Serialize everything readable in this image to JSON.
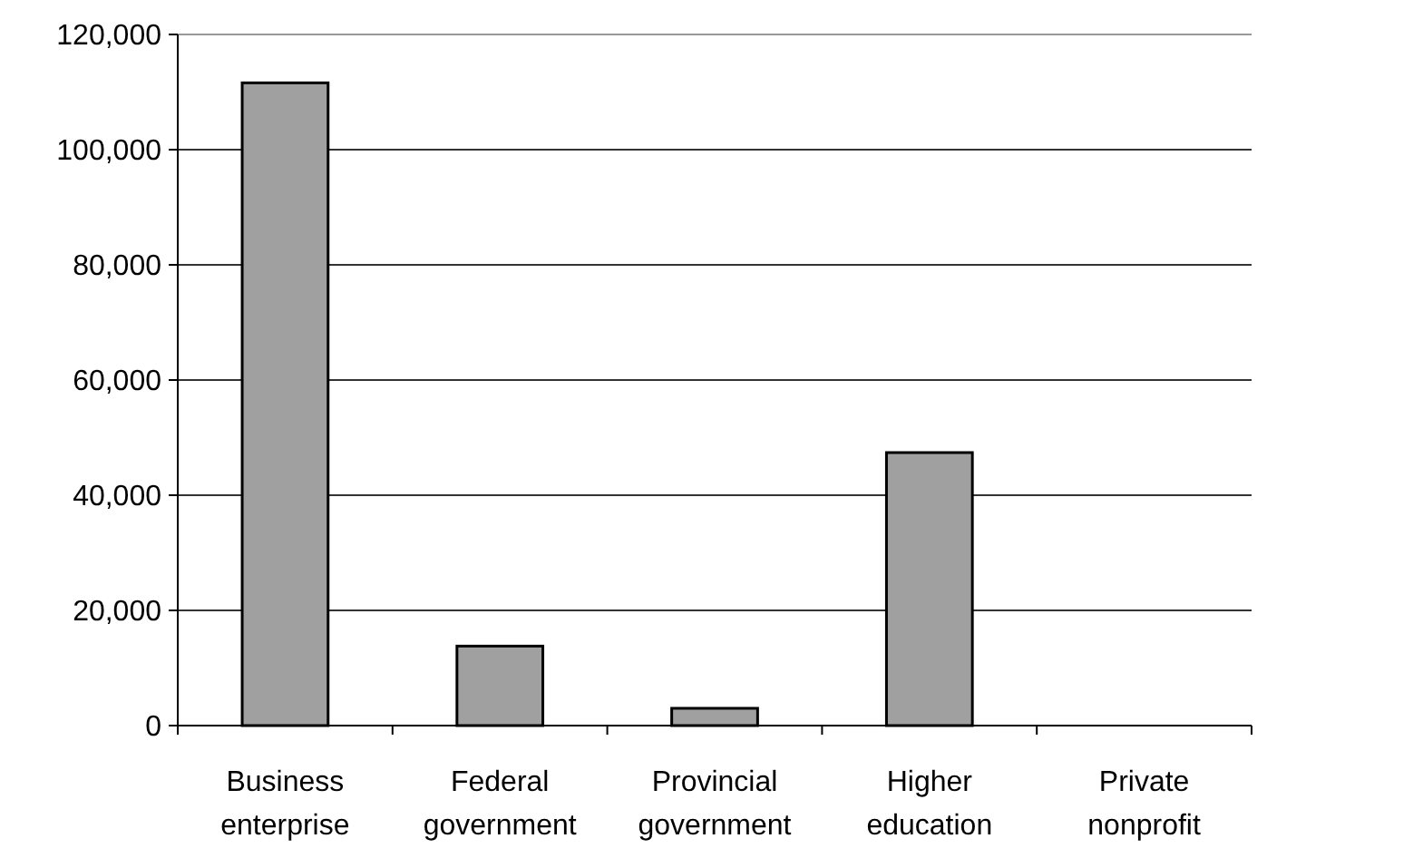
{
  "chart_data": {
    "type": "bar",
    "categories": [
      "Business enterprise",
      "Federal government",
      "Provincial government",
      "Higher education",
      "Private nonprofit"
    ],
    "values": [
      111600,
      13800,
      3000,
      47400,
      0
    ],
    "color": "#a0a0a0",
    "ylim": [
      0,
      120000
    ],
    "yticks": [
      {
        "value": 0,
        "label": "0"
      },
      {
        "value": 20000,
        "label": "20,000"
      },
      {
        "value": 40000,
        "label": "40,000"
      },
      {
        "value": 60000,
        "label": "60,000"
      },
      {
        "value": 80000,
        "label": "80,000"
      },
      {
        "value": 100000,
        "label": "100,000"
      },
      {
        "value": 120000,
        "label": "120,000"
      }
    ],
    "grid": "y"
  }
}
